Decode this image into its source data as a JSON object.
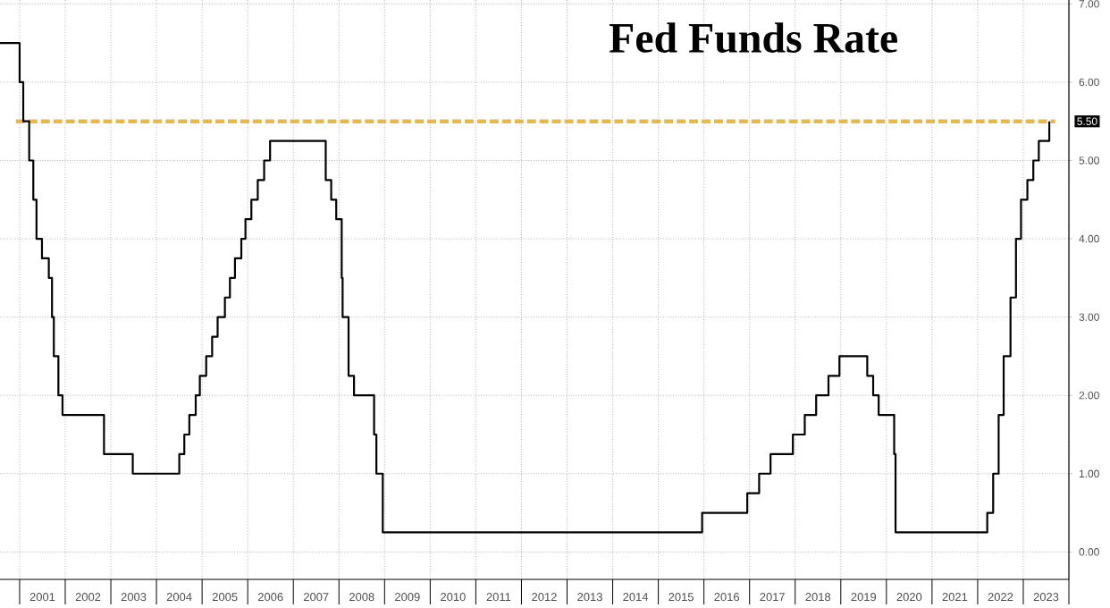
{
  "chart_data": {
    "type": "step",
    "title": "Fed Funds Rate",
    "x": [
      2000.57,
      2001.0,
      2001.08,
      2001.21,
      2001.3,
      2001.37,
      2001.49,
      2001.64,
      2001.71,
      2001.75,
      2001.85,
      2001.94,
      2002.85,
      2003.48,
      2004.5,
      2004.61,
      2004.72,
      2004.86,
      2004.95,
      2005.09,
      2005.22,
      2005.34,
      2005.5,
      2005.61,
      2005.72,
      2005.86,
      2005.95,
      2006.08,
      2006.22,
      2006.36,
      2006.49,
      2007.71,
      2007.83,
      2007.94,
      2008.06,
      2008.08,
      2008.21,
      2008.33,
      2008.77,
      2008.82,
      2008.96,
      2015.96,
      2016.95,
      2017.21,
      2017.46,
      2017.95,
      2018.21,
      2018.46,
      2018.73,
      2018.97,
      2019.58,
      2019.71,
      2019.83,
      2020.17,
      2020.2,
      2022.21,
      2022.34,
      2022.46,
      2022.57,
      2022.72,
      2022.84,
      2022.95,
      2023.09,
      2023.22,
      2023.34,
      2023.57
    ],
    "series": [
      {
        "color": "#000000",
        "values": [
          6.5,
          6.0,
          5.5,
          5.0,
          4.5,
          4.0,
          3.75,
          3.5,
          3.0,
          2.5,
          2.0,
          1.75,
          1.25,
          1.0,
          1.25,
          1.5,
          1.75,
          2.0,
          2.25,
          2.5,
          2.75,
          3.0,
          3.25,
          3.5,
          3.75,
          4.0,
          4.25,
          4.5,
          4.75,
          5.0,
          5.25,
          4.75,
          4.5,
          4.25,
          3.5,
          3.0,
          2.25,
          2.0,
          1.5,
          1.0,
          0.25,
          0.5,
          0.75,
          1.0,
          1.25,
          1.5,
          1.75,
          2.0,
          2.25,
          2.5,
          2.25,
          2.0,
          1.75,
          1.25,
          0.25,
          0.5,
          1.0,
          1.75,
          2.5,
          3.25,
          4.0,
          4.5,
          4.75,
          5.0,
          5.25,
          5.5
        ]
      }
    ],
    "xlim": [
      2000.57,
      2024.0
    ],
    "xticks": [
      {
        "value": 2001,
        "label": null
      },
      {
        "value": 2001.5,
        "label": "2001"
      },
      {
        "value": 2002,
        "label": null
      },
      {
        "value": 2002.5,
        "label": "2002"
      },
      {
        "value": 2003,
        "label": null
      },
      {
        "value": 2003.5,
        "label": "2003"
      },
      {
        "value": 2004,
        "label": null
      },
      {
        "value": 2004.5,
        "label": "2004"
      },
      {
        "value": 2005,
        "label": null
      },
      {
        "value": 2005.5,
        "label": "2005"
      },
      {
        "value": 2006,
        "label": null
      },
      {
        "value": 2006.5,
        "label": "2006"
      },
      {
        "value": 2007,
        "label": null
      },
      {
        "value": 2007.5,
        "label": "2007"
      },
      {
        "value": 2008,
        "label": null
      },
      {
        "value": 2008.5,
        "label": "2008"
      },
      {
        "value": 2009,
        "label": null
      },
      {
        "value": 2009.5,
        "label": "2009"
      },
      {
        "value": 2010,
        "label": null
      },
      {
        "value": 2010.5,
        "label": "2010"
      },
      {
        "value": 2011,
        "label": null
      },
      {
        "value": 2011.5,
        "label": "2011"
      },
      {
        "value": 2012,
        "label": null
      },
      {
        "value": 2012.5,
        "label": "2012"
      },
      {
        "value": 2013,
        "label": null
      },
      {
        "value": 2013.5,
        "label": "2013"
      },
      {
        "value": 2014,
        "label": null
      },
      {
        "value": 2014.5,
        "label": "2014"
      },
      {
        "value": 2015,
        "label": null
      },
      {
        "value": 2015.5,
        "label": "2015"
      },
      {
        "value": 2016,
        "label": null
      },
      {
        "value": 2016.5,
        "label": "2016"
      },
      {
        "value": 2017,
        "label": null
      },
      {
        "value": 2017.5,
        "label": "2017"
      },
      {
        "value": 2018,
        "label": null
      },
      {
        "value": 2018.5,
        "label": "2018"
      },
      {
        "value": 2019,
        "label": null
      },
      {
        "value": 2019.5,
        "label": "2019"
      },
      {
        "value": 2020,
        "label": null
      },
      {
        "value": 2020.5,
        "label": "2020"
      },
      {
        "value": 2021,
        "label": null
      },
      {
        "value": 2021.5,
        "label": "2021"
      },
      {
        "value": 2022,
        "label": null
      },
      {
        "value": 2022.5,
        "label": "2022"
      },
      {
        "value": 2023,
        "label": null
      },
      {
        "value": 2023.5,
        "label": "2023"
      },
      {
        "value": 2024,
        "label": null
      }
    ],
    "ylim": [
      -0.35,
      7.05
    ],
    "yticks": [
      {
        "value": 0,
        "label": "0.00"
      },
      {
        "value": 1,
        "label": "1.00"
      },
      {
        "value": 2,
        "label": "2.00"
      },
      {
        "value": 3,
        "label": "3.00"
      },
      {
        "value": 4,
        "label": "4.00"
      },
      {
        "value": 5,
        "label": "5.00"
      },
      {
        "value": 6,
        "label": "6.00"
      },
      {
        "value": 7,
        "label": "7.00"
      }
    ],
    "ref_lines": [
      {
        "axis": "y",
        "value": 5.5,
        "label": "5.50",
        "color": "#e8b84a",
        "line_style": "dashed"
      }
    ],
    "grid": true,
    "marker": "none",
    "line_style": "solid"
  }
}
